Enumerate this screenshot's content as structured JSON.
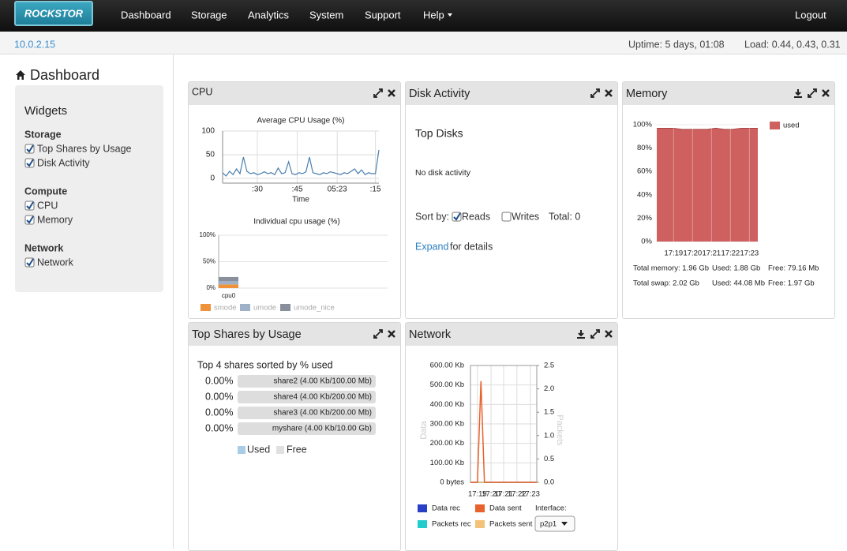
{
  "nav": {
    "brand": "ROCKSTOR",
    "items": [
      "Dashboard",
      "Storage",
      "Analytics",
      "System",
      "Support",
      "Help"
    ],
    "logout": "Logout"
  },
  "status": {
    "ip": "10.0.2.15",
    "uptime": "Uptime: 5 days, 01:08",
    "load": "Load: 0.44, 0.43, 0.31"
  },
  "sidebar": {
    "title": "Dashboard",
    "widgets_title": "Widgets",
    "groups": [
      {
        "name": "Storage",
        "items": [
          "Top Shares by Usage",
          "Disk Activity"
        ]
      },
      {
        "name": "Compute",
        "items": [
          "CPU",
          "Memory"
        ]
      },
      {
        "name": "Network",
        "items": [
          "Network"
        ]
      }
    ]
  },
  "cpu": {
    "title": "CPU",
    "average": {
      "type": "line",
      "title": "Average CPU Usage (%)",
      "x_label": "Time",
      "color": "#4a7fb0",
      "grid": true,
      "values": [
        12,
        5,
        15,
        8,
        20,
        10,
        45,
        15,
        10,
        12,
        8,
        10,
        14,
        10,
        12,
        8,
        22,
        10,
        12,
        35,
        10,
        8,
        12,
        10,
        14,
        45,
        12,
        10,
        8,
        12,
        10,
        14,
        12,
        10,
        8,
        12,
        10,
        15,
        20,
        10,
        18,
        8,
        12,
        10,
        10,
        60
      ],
      "xlim": [
        0,
        45
      ],
      "xticks": [
        {
          "value": 10,
          "label": ":30"
        },
        {
          "value": 21.5,
          "label": ":45"
        },
        {
          "value": 33,
          "label": "05:23"
        },
        {
          "value": 44,
          "label": ":15"
        }
      ],
      "ylim": [
        -10,
        100
      ],
      "yticks": [
        0,
        50,
        100
      ]
    },
    "individual": {
      "type": "stacked-bar",
      "title": "Individual cpu usage (%)",
      "categories": [
        "cpu0"
      ],
      "series": [
        {
          "name": "smode",
          "color": "#f0923a",
          "values": [
            7
          ]
        },
        {
          "name": "umode",
          "color": "#9fb1c8",
          "values": [
            6
          ]
        },
        {
          "name": "umode_nice",
          "color": "#8a8f9c",
          "values": [
            8
          ]
        }
      ],
      "ylim": [
        0,
        100
      ],
      "yticks": [
        {
          "value": 0,
          "label": "0%"
        },
        {
          "value": 50,
          "label": "50%"
        },
        {
          "value": 100,
          "label": "100%"
        }
      ]
    }
  },
  "disk": {
    "title": "Disk Activity",
    "heading": "Top Disks",
    "message": "No disk activity",
    "sort_label": "Sort by:",
    "options": [
      {
        "label": "Reads",
        "checked": true
      },
      {
        "label": "Writes",
        "checked": false
      }
    ],
    "total": "Total: 0",
    "expand_link": "Expand",
    "expand_text": "for details"
  },
  "memory": {
    "title": "Memory",
    "chart": {
      "type": "area",
      "color": "#cf6060",
      "values": [
        97,
        97,
        97,
        96,
        96,
        96,
        96,
        97,
        96,
        96,
        97,
        97,
        97
      ],
      "series_name": "used",
      "xlim": [
        0,
        12
      ],
      "xticks": [
        {
          "value": 2,
          "label": "17:19"
        },
        {
          "value": 4.25,
          "label": "17:20"
        },
        {
          "value": 6.5,
          "label": "17:21"
        },
        {
          "value": 8.75,
          "label": "17:22"
        },
        {
          "value": 11,
          "label": "17:23"
        }
      ],
      "ylim": [
        0,
        100
      ],
      "yticks": [
        {
          "value": 0,
          "label": "0%"
        },
        {
          "value": 20,
          "label": "20%"
        },
        {
          "value": 40,
          "label": "40%"
        },
        {
          "value": 60,
          "label": "60%"
        },
        {
          "value": 80,
          "label": "80%"
        },
        {
          "value": 100,
          "label": "100%"
        }
      ]
    },
    "stats": [
      [
        "Total memory: 1.96 Gb",
        "Used: 1.88 Gb",
        "Free: 79.16 Mb"
      ],
      [
        "Total swap: 2.02 Gb",
        "Used: 44.08 Mb",
        "Free: 1.97 Gb"
      ]
    ]
  },
  "shares": {
    "title": "Top Shares by Usage",
    "heading": "Top 4 shares sorted by % used",
    "rows": [
      {
        "percent": "0.00%",
        "label": "share2 (4.00 Kb/100.00 Mb)"
      },
      {
        "percent": "0.00%",
        "label": "share4 (4.00 Kb/200.00 Mb)"
      },
      {
        "percent": "0.00%",
        "label": "share3 (4.00 Kb/200.00 Mb)"
      },
      {
        "percent": "0.00%",
        "label": "myshare (4.00 Kb/10.00 Gb)"
      }
    ],
    "legend": [
      {
        "name": "Used",
        "color": "#a9cde6"
      },
      {
        "name": "Free",
        "color": "#e0e0e0"
      }
    ]
  },
  "network": {
    "title": "Network",
    "interface_label": "Interface:",
    "interface": "p2p1",
    "chart": {
      "type": "line",
      "y_label": "Data",
      "y2_label": "Packets",
      "grid": true,
      "xlim": [
        0,
        19
      ],
      "xticks": [
        {
          "value": 2,
          "label": "17:19"
        },
        {
          "value": 5.9,
          "label": "17:20"
        },
        {
          "value": 9.5,
          "label": "17:21"
        },
        {
          "value": 13.3,
          "label": "17:22"
        },
        {
          "value": 17.2,
          "label": "17:23"
        }
      ],
      "ylim": [
        0,
        600
      ],
      "yticks": [
        {
          "value": 0,
          "label": "0 bytes"
        },
        {
          "value": 100,
          "label": "100.00 Kb"
        },
        {
          "value": 200,
          "label": "200.00 Kb"
        },
        {
          "value": 300,
          "label": "300.00 Kb"
        },
        {
          "value": 400,
          "label": "400.00 Kb"
        },
        {
          "value": 500,
          "label": "500.00 Kb"
        },
        {
          "value": 600,
          "label": "600.00 Kb"
        }
      ],
      "y2lim": [
        0,
        2.5
      ],
      "y2ticks": [
        {
          "value": 0,
          "label": "0.0"
        },
        0.5,
        {
          "value": 1,
          "label": "1.0"
        },
        1.5,
        {
          "value": 2,
          "label": "2.0"
        },
        2.5
      ],
      "series": [
        {
          "name": "Data rec",
          "color": "#2a3fc7",
          "values": [
            0,
            0,
            0,
            0,
            0,
            0,
            0,
            0,
            0,
            0,
            0,
            0,
            0,
            0,
            0,
            0,
            0,
            0,
            0,
            0
          ]
        },
        {
          "name": "Packets rec",
          "color": "#22cccc",
          "axis": "y2",
          "values": [
            0,
            0,
            0,
            0,
            0,
            0,
            0,
            0,
            0,
            0,
            0,
            0,
            0,
            0,
            0,
            0,
            0,
            0,
            0,
            0
          ]
        },
        {
          "name": "Packets sent",
          "color": "#f5c27a",
          "axis": "y2",
          "values": [
            0,
            0,
            0,
            0,
            0,
            0,
            0,
            0,
            0,
            0,
            0,
            0,
            0,
            0,
            0,
            0,
            0,
            0,
            0,
            0
          ]
        },
        {
          "name": "Data sent",
          "color": "#e8622c",
          "values": [
            0,
            0,
            0,
            520,
            0,
            0,
            0,
            0,
            0,
            0,
            0,
            0,
            0,
            0,
            0,
            0,
            0,
            0,
            0,
            0
          ]
        }
      ]
    }
  }
}
